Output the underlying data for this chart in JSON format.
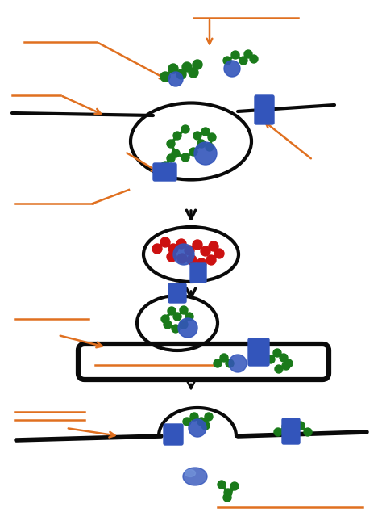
{
  "bg_color": "#ffffff",
  "orange": "#e07020",
  "black": "#0a0a0a",
  "green": "#1a7a1a",
  "blue": "#3355bb",
  "red": "#cc1111",
  "figsize": [
    4.74,
    6.34
  ],
  "dpi": 100
}
